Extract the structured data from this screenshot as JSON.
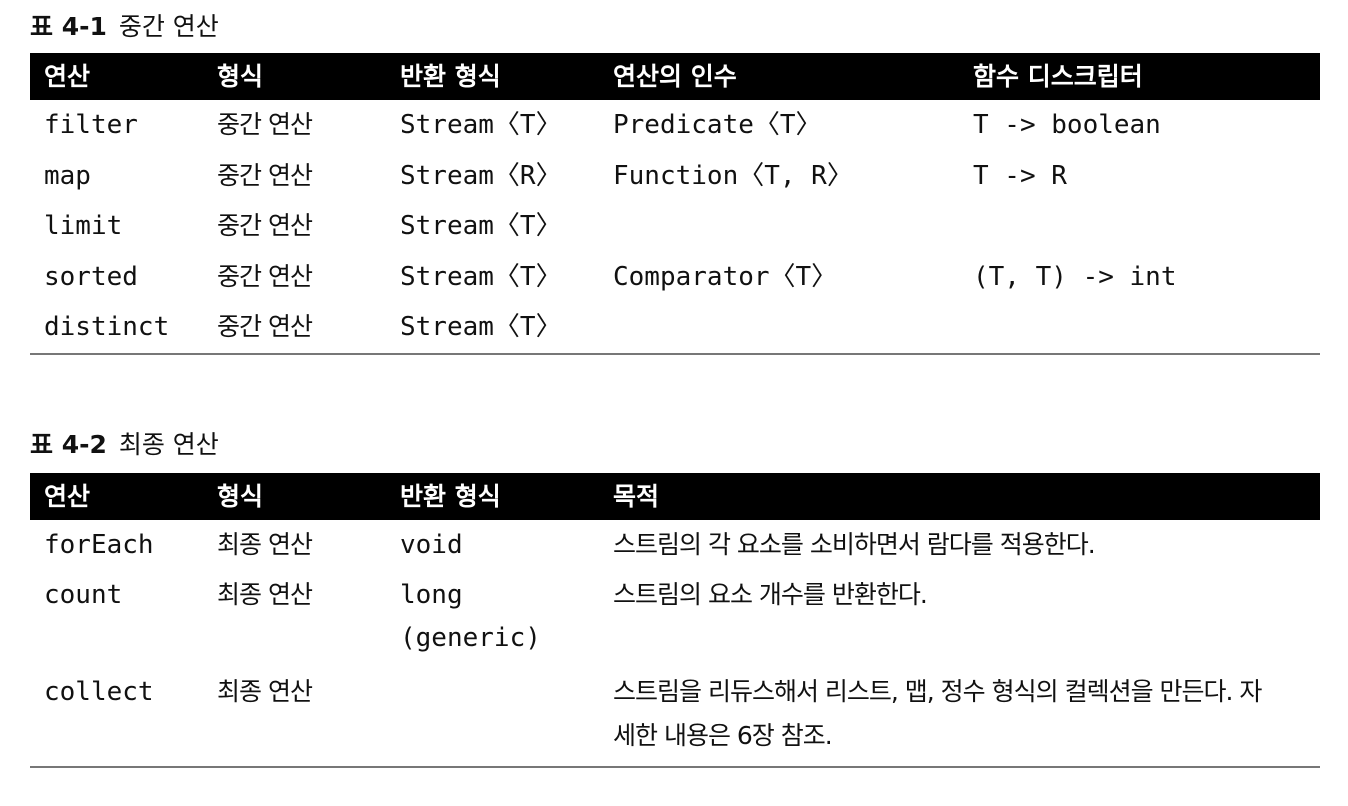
{
  "table1": {
    "label": "표 4-1",
    "title": "중간 연산",
    "headers": [
      "연산",
      "형식",
      "반환 형식",
      "연산의 인수",
      "함수 디스크립터"
    ],
    "rows": [
      [
        "filter",
        "중간 연산",
        "Stream〈T〉",
        "Predicate〈T〉",
        "T -> boolean"
      ],
      [
        "map",
        "중간 연산",
        "Stream〈R〉",
        "Function〈T, R〉",
        "T -> R"
      ],
      [
        "limit",
        "중간 연산",
        "Stream〈T〉",
        "",
        ""
      ],
      [
        "sorted",
        "중간 연산",
        "Stream〈T〉",
        "Comparator〈T〉",
        "(T, T) -> int"
      ],
      [
        "distinct",
        "중간 연산",
        "Stream〈T〉",
        "",
        ""
      ]
    ]
  },
  "table2": {
    "label": "표 4-2",
    "title": "최종 연산",
    "headers": [
      "연산",
      "형식",
      "반환 형식",
      "목적"
    ],
    "rows": [
      [
        "forEach",
        "최종 연산",
        "void",
        "스트림의 각 요소를 소비하면서 람다를 적용한다."
      ],
      [
        "count",
        "최종 연산",
        "long",
        "스트림의 요소 개수를 반환한다."
      ],
      [
        "collect",
        "최종 연산",
        "",
        "스트림을 리듀스해서 리스트, 맵, 정수 형식의 컬렉션을 만든다. 자"
      ]
    ],
    "count_return_line2": "(generic)",
    "collect_purpose_line2": "세한 내용은 6장 참조."
  }
}
